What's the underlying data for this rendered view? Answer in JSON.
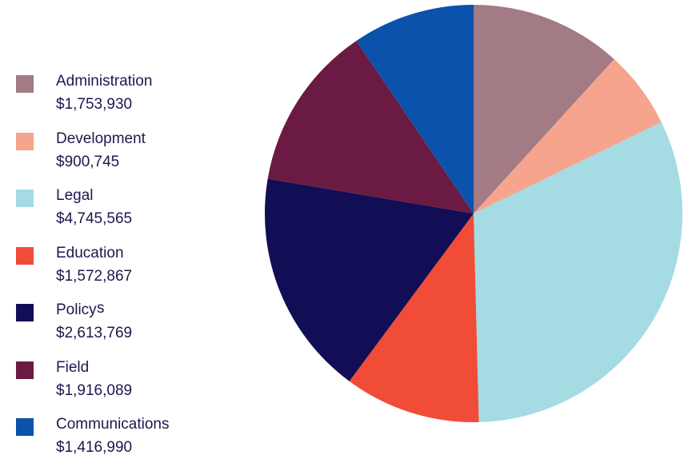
{
  "chart_data": {
    "type": "pie",
    "start_angle_deg": 0,
    "direction": "clockwise",
    "slices": [
      {
        "name": "Administration",
        "value_label": "$1,753,930",
        "value": 1753930,
        "color": "#a27b84"
      },
      {
        "name": "Development",
        "value_label": "$900,745",
        "value": 900745,
        "color": "#f6a48d"
      },
      {
        "name": "Legal",
        "value_label": "$4,745,565",
        "value": 4745565,
        "color": "#a5dbe3"
      },
      {
        "name": "Education",
        "value_label": "$1,572,867",
        "value": 1572867,
        "color": "#f04c38"
      },
      {
        "name": "Policy",
        "value_label": "$2,613,769",
        "value": 2613769,
        "color": "#120e55"
      },
      {
        "name": "Field",
        "value_label": "$1,916,089",
        "value": 1916089,
        "color": "#6a1a43"
      },
      {
        "name": "Communications",
        "value_label": "$1,416,990",
        "value": 1416990,
        "color": "#0a52ab"
      }
    ],
    "legend_position": "left"
  },
  "stray_text": "s"
}
